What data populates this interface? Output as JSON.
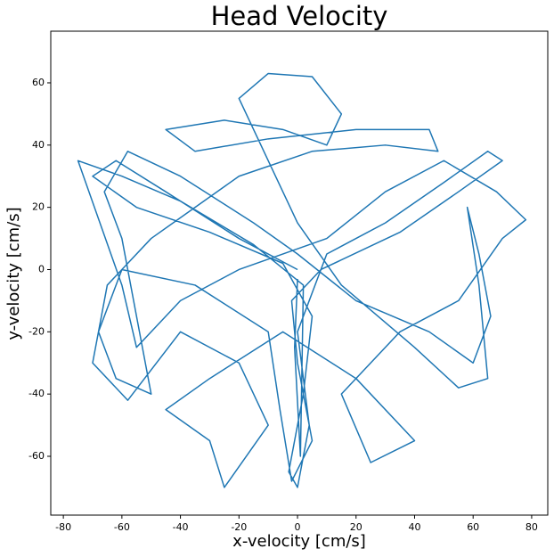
{
  "chart_data": {
    "type": "line",
    "title": "Head Velocity",
    "x_label": "x-velocity [cm/s]",
    "y_label": "y-velocity [cm/s]",
    "xlim": [
      -84.3,
      85.5
    ],
    "ylim": [
      -78.9,
      76.6
    ],
    "xticks": [
      -80,
      -60,
      -40,
      -20,
      0,
      20,
      40,
      60,
      80
    ],
    "yticks": [
      -60,
      -40,
      -20,
      0,
      20,
      40,
      60
    ],
    "grid": false,
    "series": [
      {
        "color": "#1f77b4",
        "x": [
          0,
          -20,
          -45,
          -62,
          -70,
          -55,
          -30,
          -5,
          5,
          2,
          -3,
          0,
          4,
          0,
          10,
          30,
          50,
          65,
          70,
          55,
          35,
          8,
          -2,
          0,
          5,
          -2,
          -6,
          -10,
          -35,
          -60,
          -68,
          -62,
          -50,
          -55,
          -60,
          -66,
          -58,
          -40,
          -15,
          0,
          20,
          45,
          60,
          66,
          62,
          58,
          62,
          65,
          55,
          40,
          15,
          0,
          -10,
          -20,
          -10,
          5,
          15,
          10,
          -5,
          -25,
          -45,
          -35,
          -10,
          20,
          45,
          48,
          30,
          5,
          -20,
          -50,
          -65,
          -70,
          -58,
          -40,
          -20,
          -10,
          -25,
          -30,
          -45,
          -30,
          -5,
          20,
          40,
          25,
          15,
          35,
          55,
          70,
          78,
          68,
          50,
          30,
          10,
          -20,
          -40,
          -55,
          -60,
          -75,
          -60,
          -40,
          -15,
          2,
          1,
          -1,
          0
        ],
        "values": [
          0,
          10,
          25,
          35,
          30,
          20,
          12,
          2,
          -15,
          -40,
          -65,
          -70,
          -50,
          -20,
          5,
          15,
          28,
          38,
          35,
          25,
          12,
          0,
          -10,
          -30,
          -55,
          -68,
          -45,
          -20,
          -5,
          0,
          -20,
          -35,
          -40,
          -15,
          10,
          25,
          38,
          30,
          15,
          5,
          -10,
          -20,
          -30,
          -15,
          5,
          20,
          -5,
          -35,
          -38,
          -25,
          -5,
          15,
          35,
          55,
          63,
          62,
          50,
          40,
          45,
          48,
          45,
          38,
          42,
          45,
          45,
          38,
          40,
          38,
          30,
          10,
          -5,
          -30,
          -42,
          -20,
          -30,
          -50,
          -70,
          -55,
          -45,
          -35,
          -20,
          -35,
          -55,
          -62,
          -40,
          -20,
          -10,
          10,
          16,
          25,
          35,
          25,
          10,
          0,
          -10,
          -25,
          -5,
          35,
          30,
          22,
          8,
          -5,
          -60,
          -25,
          -3
        ]
      }
    ]
  }
}
